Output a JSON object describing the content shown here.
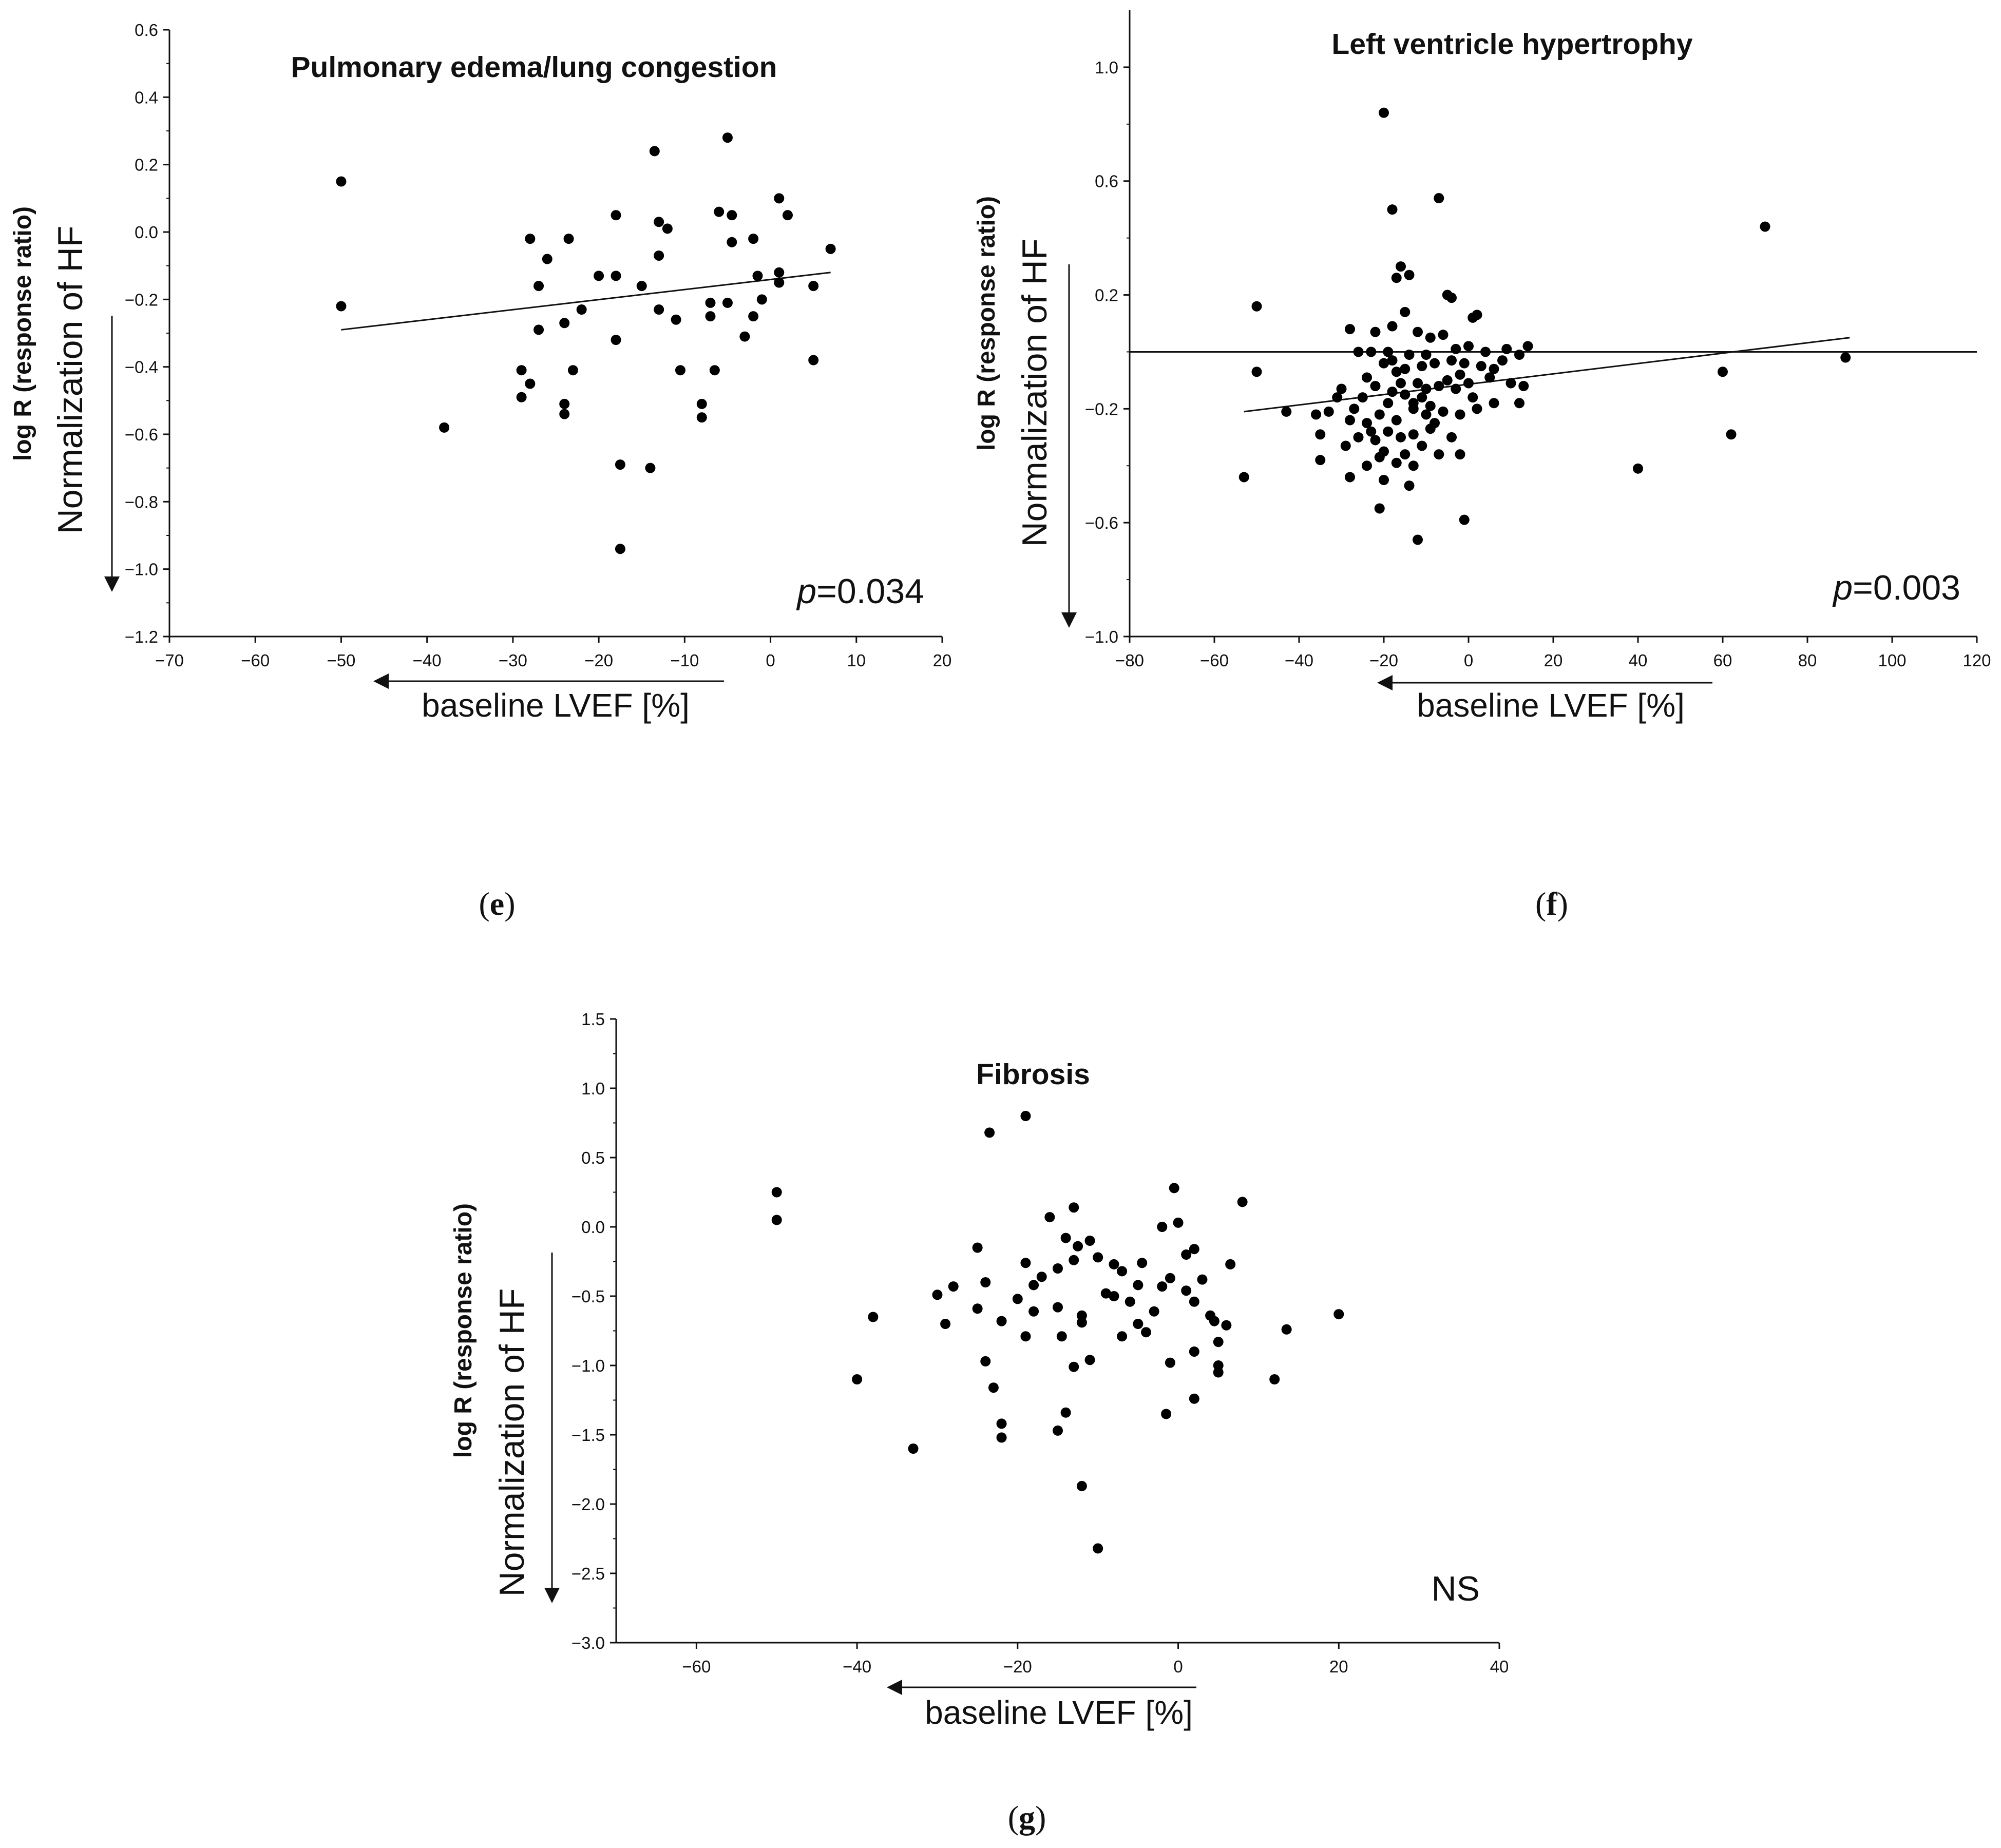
{
  "chart_data": [
    {
      "type": "scatter",
      "panel": "e",
      "title": "Pulmonary edema/lung congestion",
      "ylabel_top": "log R (response ratio)",
      "ylabel_bottom": "Normalization of HF",
      "xlabel": "baseline LVEF [%]",
      "annotation_prefix": "p",
      "annotation_value": "=0.034",
      "xlim": [
        -70,
        20
      ],
      "ylim": [
        -1.2,
        0.6
      ],
      "xticks": [
        -70,
        -60,
        -50,
        -40,
        -30,
        -20,
        -10,
        0,
        10,
        20
      ],
      "yticks": [
        0.6,
        0.4,
        0.2,
        0.0,
        -0.2,
        -0.4,
        -0.6,
        -0.8,
        -1.0,
        -1.2
      ],
      "trendline": [
        [
          -50,
          -0.29
        ],
        [
          7,
          -0.12
        ]
      ],
      "points": [
        [
          -50,
          0.15
        ],
        [
          -50,
          -0.22
        ],
        [
          -38,
          -0.58
        ],
        [
          -29,
          -0.41
        ],
        [
          -29,
          -0.49
        ],
        [
          -28,
          -0.02
        ],
        [
          -28,
          -0.45
        ],
        [
          -27,
          -0.16
        ],
        [
          -27,
          -0.29
        ],
        [
          -26,
          -0.08
        ],
        [
          -24,
          -0.27
        ],
        [
          -24,
          -0.51
        ],
        [
          -24,
          -0.54
        ],
        [
          -23.5,
          -0.02
        ],
        [
          -23,
          -0.41
        ],
        [
          -22,
          -0.23
        ],
        [
          -20,
          -0.13
        ],
        [
          -18,
          -0.13
        ],
        [
          -18,
          -0.32
        ],
        [
          -18,
          0.05
        ],
        [
          -17.5,
          -0.69
        ],
        [
          -17.5,
          -0.94
        ],
        [
          -15,
          -0.16
        ],
        [
          -14,
          -0.7
        ],
        [
          -13.5,
          0.24
        ],
        [
          -13,
          0.03
        ],
        [
          -13,
          -0.07
        ],
        [
          -13,
          -0.23
        ],
        [
          -12,
          0.01
        ],
        [
          -11,
          -0.26
        ],
        [
          -10.5,
          -0.41
        ],
        [
          -8,
          -0.51
        ],
        [
          -8,
          -0.55
        ],
        [
          -7,
          -0.21
        ],
        [
          -7,
          -0.25
        ],
        [
          -6.5,
          -0.41
        ],
        [
          -6,
          0.06
        ],
        [
          -5,
          -0.21
        ],
        [
          -5,
          0.28
        ],
        [
          -4.5,
          0.05
        ],
        [
          -4.5,
          -0.03
        ],
        [
          -3,
          -0.31
        ],
        [
          -2,
          -0.02
        ],
        [
          -2,
          -0.25
        ],
        [
          -1.5,
          -0.13
        ],
        [
          -1,
          -0.2
        ],
        [
          1,
          0.1
        ],
        [
          1,
          -0.12
        ],
        [
          1,
          -0.15
        ],
        [
          2,
          0.05
        ],
        [
          5,
          -0.16
        ],
        [
          5,
          -0.38
        ],
        [
          7,
          -0.05
        ]
      ]
    },
    {
      "type": "scatter",
      "panel": "f",
      "title": "Left ventricle hypertrophy",
      "ylabel_top": "log R (response ratio)",
      "ylabel_bottom": "Normalization of HF",
      "xlabel": "baseline LVEF [%]",
      "annotation_prefix": "p",
      "annotation_value": "=0.003",
      "xlim": [
        -80,
        120
      ],
      "ylim": [
        -1.0,
        1.2
      ],
      "xticks": [
        -80,
        -60,
        -40,
        -20,
        0,
        20,
        40,
        60,
        80,
        100,
        120
      ],
      "yticks": [
        1.0,
        0.6,
        0.2,
        -0.2,
        -0.6,
        -1.0
      ],
      "yticklabels": [
        "1.0",
        "0.6",
        "0.2",
        "−0.2",
        "−0.6",
        "−1.0"
      ],
      "hline": 0.0,
      "trendline": [
        [
          -53,
          -0.21
        ],
        [
          90,
          0.05
        ]
      ],
      "points": [
        [
          -20,
          0.84
        ],
        [
          -18,
          0.5
        ],
        [
          -7,
          0.54
        ],
        [
          70,
          0.44
        ],
        [
          -16,
          0.3
        ],
        [
          -17,
          0.26
        ],
        [
          -14,
          0.27
        ],
        [
          -5,
          0.2
        ],
        [
          -4,
          0.19
        ],
        [
          -50,
          0.16
        ],
        [
          -15,
          0.14
        ],
        [
          1,
          0.12
        ],
        [
          2,
          0.13
        ],
        [
          -28,
          0.08
        ],
        [
          -22,
          0.07
        ],
        [
          -18,
          0.09
        ],
        [
          -12,
          0.07
        ],
        [
          -9,
          0.05
        ],
        [
          -6,
          0.06
        ],
        [
          -26,
          0.0
        ],
        [
          -23,
          0.0
        ],
        [
          -19,
          0.0
        ],
        [
          -14,
          -0.01
        ],
        [
          -10,
          -0.01
        ],
        [
          -3,
          0.01
        ],
        [
          0,
          0.02
        ],
        [
          4,
          0.0
        ],
        [
          9,
          0.01
        ],
        [
          14,
          0.02
        ],
        [
          12,
          -0.01
        ],
        [
          -50,
          -0.07
        ],
        [
          -20,
          -0.04
        ],
        [
          -15,
          -0.06
        ],
        [
          -11,
          -0.05
        ],
        [
          -8,
          -0.04
        ],
        [
          -4,
          -0.03
        ],
        [
          -1,
          -0.04
        ],
        [
          3,
          -0.05
        ],
        [
          6,
          -0.06
        ],
        [
          8,
          -0.03
        ],
        [
          -30,
          -0.13
        ],
        [
          -25,
          -0.16
        ],
        [
          -22,
          -0.12
        ],
        [
          -18,
          -0.14
        ],
        [
          -15,
          -0.15
        ],
        [
          -12,
          -0.11
        ],
        [
          -10,
          -0.13
        ],
        [
          -7,
          -0.12
        ],
        [
          -3,
          -0.13
        ],
        [
          1,
          -0.16
        ],
        [
          10,
          -0.11
        ],
        [
          13,
          -0.12
        ],
        [
          -43,
          -0.21
        ],
        [
          -36,
          -0.22
        ],
        [
          -33,
          -0.21
        ],
        [
          -28,
          -0.24
        ],
        [
          -24,
          -0.25
        ],
        [
          -21,
          -0.22
        ],
        [
          -17,
          -0.24
        ],
        [
          -13,
          -0.2
        ],
        [
          -10,
          -0.22
        ],
        [
          -6,
          -0.21
        ],
        [
          -2,
          -0.22
        ],
        [
          2,
          -0.2
        ],
        [
          12,
          -0.18
        ],
        [
          6,
          -0.18
        ],
        [
          -35,
          -0.29
        ],
        [
          -29,
          -0.33
        ],
        [
          -26,
          -0.3
        ],
        [
          -22,
          -0.31
        ],
        [
          -19,
          -0.28
        ],
        [
          -16,
          -0.3
        ],
        [
          -13,
          -0.29
        ],
        [
          -9,
          -0.27
        ],
        [
          -4,
          -0.3
        ],
        [
          -35,
          -0.38
        ],
        [
          -28,
          -0.44
        ],
        [
          -24,
          -0.4
        ],
        [
          -21,
          -0.37
        ],
        [
          -17,
          -0.39
        ],
        [
          -13,
          -0.4
        ],
        [
          -7,
          -0.36
        ],
        [
          -2,
          -0.36
        ],
        [
          40,
          -0.41
        ],
        [
          60,
          -0.07
        ],
        [
          62,
          -0.29
        ],
        [
          -53,
          -0.44
        ],
        [
          -20,
          -0.45
        ],
        [
          -14,
          -0.47
        ],
        [
          -21,
          -0.55
        ],
        [
          -1,
          -0.59
        ],
        [
          -12,
          -0.66
        ],
        [
          89,
          -0.02
        ],
        [
          -18,
          -0.03
        ],
        [
          -19,
          -0.18
        ],
        [
          -16,
          -0.11
        ],
        [
          -11,
          -0.16
        ],
        [
          -9,
          -0.19
        ],
        [
          -5,
          -0.1
        ],
        [
          -2,
          -0.08
        ],
        [
          0,
          -0.11
        ],
        [
          5,
          -0.09
        ],
        [
          -24,
          -0.09
        ],
        [
          -27,
          -0.2
        ],
        [
          -31,
          -0.16
        ],
        [
          -20,
          -0.35
        ],
        [
          -15,
          -0.36
        ],
        [
          -11,
          -0.33
        ],
        [
          -8,
          -0.25
        ],
        [
          -17,
          -0.07
        ],
        [
          -13,
          -0.18
        ],
        [
          -23,
          -0.28
        ]
      ]
    },
    {
      "type": "scatter",
      "panel": "g",
      "title": "Fibrosis",
      "ylabel_top": "log R (response ratio)",
      "ylabel_bottom": "Normalization of HF",
      "xlabel": "baseline LVEF [%]",
      "annotation_prefix": "",
      "annotation_value": "NS",
      "xlim": [
        -70,
        40
      ],
      "ylim": [
        -3.0,
        1.5
      ],
      "xticks": [
        -60,
        -40,
        -20,
        0,
        20,
        40
      ],
      "yticks": [
        1.5,
        1.0,
        0.5,
        0.0,
        -0.5,
        -1.0,
        -1.5,
        -2.0,
        -2.5,
        -3.0
      ],
      "points": [
        [
          -50,
          0.25
        ],
        [
          -50,
          0.05
        ],
        [
          -38,
          -0.65
        ],
        [
          -40,
          -1.1
        ],
        [
          -23.5,
          0.68
        ],
        [
          -19,
          0.8
        ],
        [
          -30,
          -0.49
        ],
        [
          -29,
          -0.7
        ],
        [
          -28,
          -0.43
        ],
        [
          -25,
          -0.15
        ],
        [
          -25,
          -0.59
        ],
        [
          -24,
          -0.4
        ],
        [
          -24,
          -0.97
        ],
        [
          -23,
          -1.16
        ],
        [
          -22,
          -1.42
        ],
        [
          -22,
          -1.52
        ],
        [
          -22,
          -0.68
        ],
        [
          -20,
          -0.52
        ],
        [
          -19,
          -0.79
        ],
        [
          -19,
          -0.26
        ],
        [
          -18,
          -0.42
        ],
        [
          -18,
          -0.61
        ],
        [
          -17,
          -0.36
        ],
        [
          -16,
          0.07
        ],
        [
          -15,
          -0.3
        ],
        [
          -15,
          -0.58
        ],
        [
          -15,
          -1.47
        ],
        [
          -14.5,
          -0.79
        ],
        [
          -14,
          -0.08
        ],
        [
          -13,
          -0.24
        ],
        [
          -13,
          0.14
        ],
        [
          -13,
          -1.01
        ],
        [
          -12.5,
          -0.14
        ],
        [
          -12,
          -0.69
        ],
        [
          -12,
          -0.64
        ],
        [
          -12,
          -1.87
        ],
        [
          -11,
          -0.1
        ],
        [
          -11,
          -0.96
        ],
        [
          -10,
          -2.32
        ],
        [
          -10,
          -0.22
        ],
        [
          -9,
          -0.48
        ],
        [
          -8,
          -0.27
        ],
        [
          -8,
          -0.5
        ],
        [
          -7,
          -0.79
        ],
        [
          -7,
          -0.32
        ],
        [
          -6,
          -0.54
        ],
        [
          -5,
          -0.42
        ],
        [
          -5,
          -0.7
        ],
        [
          -4.5,
          -0.26
        ],
        [
          -4,
          -0.76
        ],
        [
          -3,
          -0.61
        ],
        [
          -2,
          -0.43
        ],
        [
          -2,
          0.0
        ],
        [
          -1.5,
          -1.35
        ],
        [
          -1,
          -0.37
        ],
        [
          -1,
          -0.98
        ],
        [
          -0.5,
          0.28
        ],
        [
          0,
          0.03
        ],
        [
          1,
          -0.46
        ],
        [
          1,
          -0.2
        ],
        [
          2,
          -0.16
        ],
        [
          2,
          -0.54
        ],
        [
          2,
          -0.9
        ],
        [
          2,
          -1.24
        ],
        [
          3,
          -0.38
        ],
        [
          4,
          -0.64
        ],
        [
          4.5,
          -0.68
        ],
        [
          5,
          -0.83
        ],
        [
          5,
          -1.0
        ],
        [
          5,
          -1.05
        ],
        [
          6.5,
          -0.27
        ],
        [
          6,
          -0.71
        ],
        [
          8,
          0.18
        ],
        [
          12,
          -1.1
        ],
        [
          13.5,
          -0.74
        ],
        [
          20,
          -0.63
        ],
        [
          -33,
          -1.6
        ],
        [
          -14,
          -1.34
        ]
      ]
    }
  ],
  "panel_labels": {
    "e": {
      "open": "(",
      "letter": "e",
      "close": ")"
    },
    "f": {
      "open": "(",
      "letter": "f",
      "close": ")"
    },
    "g": {
      "open": "(",
      "letter": "g",
      "close": ")"
    }
  }
}
